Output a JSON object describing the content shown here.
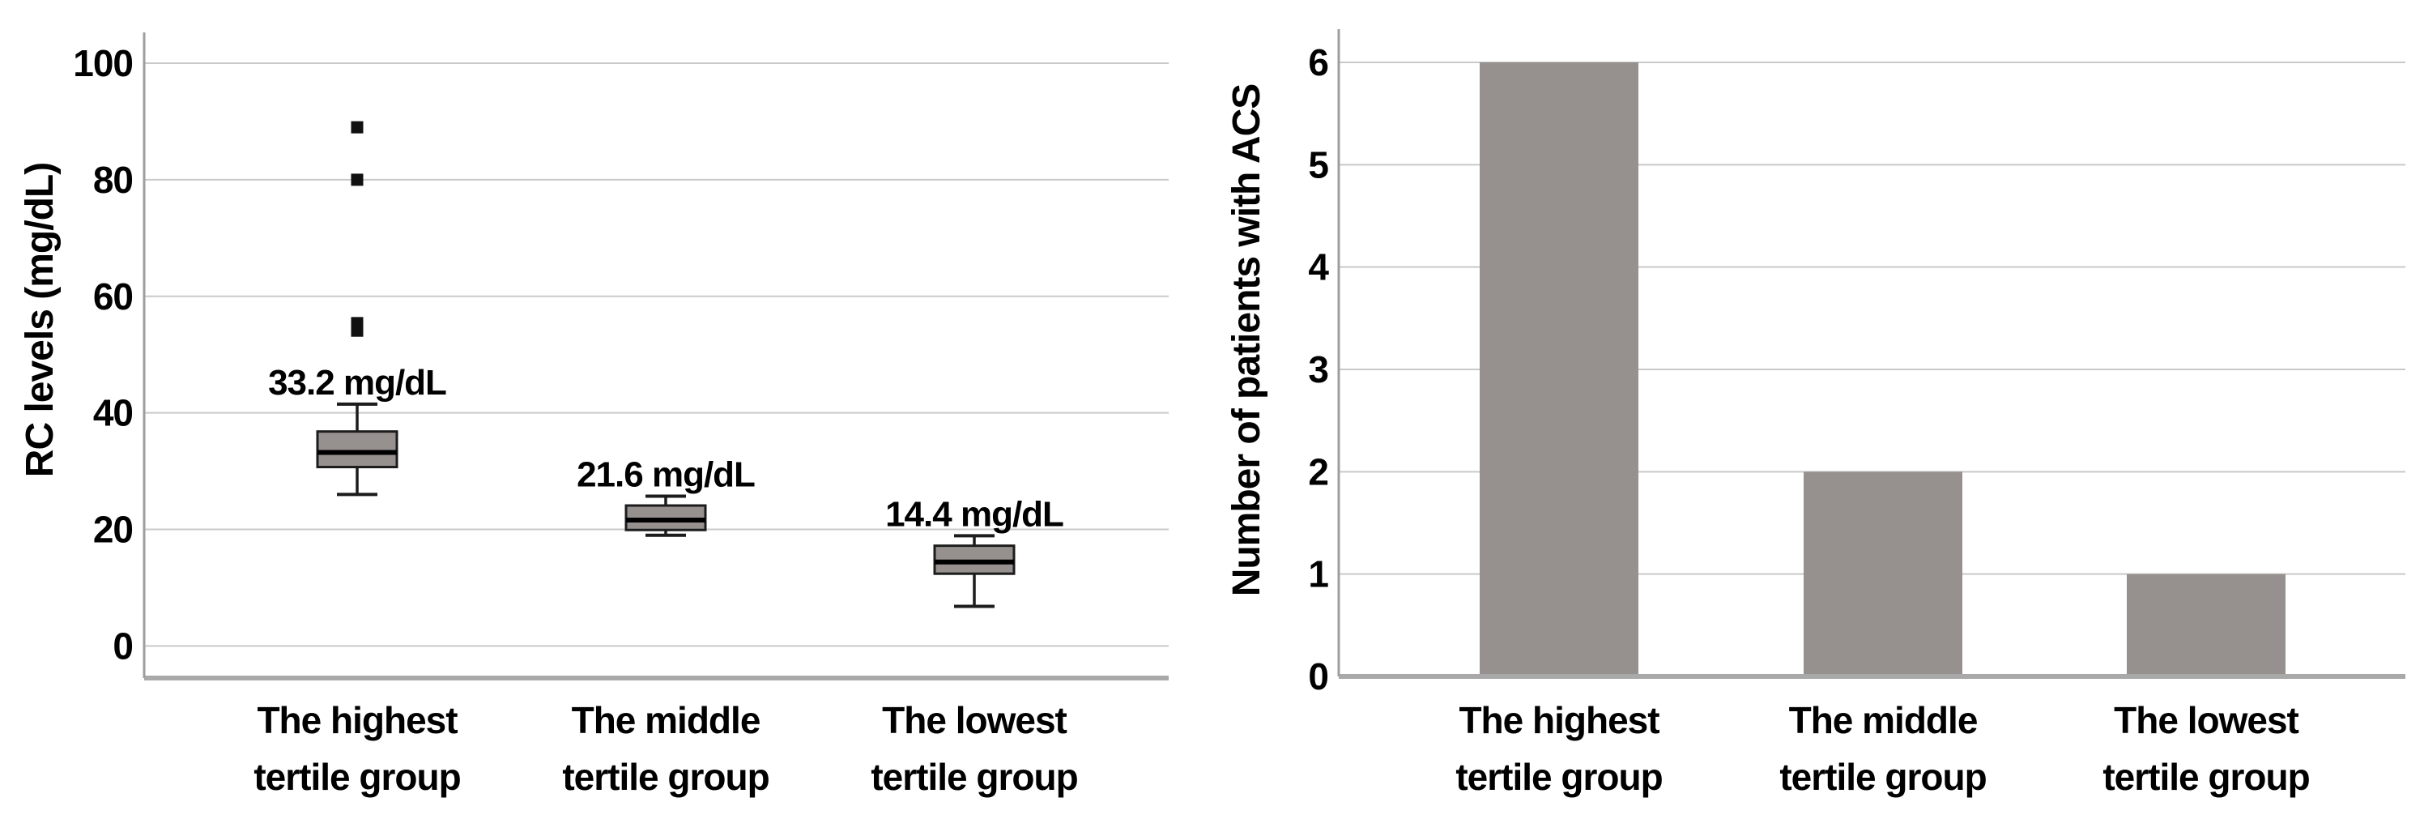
{
  "figure": {
    "background": "#ffffff",
    "left_axis_title": "RC levels (mg/dL)",
    "right_axis_title": "Number of patients with ACS"
  },
  "colors": {
    "box_fill": "#96918f",
    "bar_fill": "#96918f",
    "box_border": "#1c1c1c",
    "median_line": "#000000",
    "whisker": "#1c1c1c",
    "outlier": "#111111",
    "gridline": "#c9c9c9",
    "axis_line": "#9e9e9e",
    "baseline": "#a9a9a9",
    "text": "#000000"
  },
  "chart_data": [
    {
      "type": "boxplot",
      "title": "",
      "ylabel": "RC levels (mg/dL)",
      "xlabel": "",
      "ylim": [
        0,
        100
      ],
      "yticks": [
        0,
        20,
        40,
        60,
        80,
        100
      ],
      "grid": true,
      "legend": "none",
      "categories": [
        "The highest tertile group",
        "The middle tertile group",
        "The lowest tertile group"
      ],
      "category_lines": [
        [
          "The highest",
          "tertile group"
        ],
        [
          "The middle",
          "tertile group"
        ],
        [
          "The lowest",
          "tertile group"
        ]
      ],
      "boxes": [
        {
          "whisker_low": 26.0,
          "q1": 30.7,
          "median": 33.2,
          "q3": 36.8,
          "whisker_high": 41.5,
          "outliers": [
            54.1,
            55.4,
            80.0,
            89.0
          ],
          "annotation": "33.2 mg/dL"
        },
        {
          "whisker_low": 19.0,
          "q1": 19.9,
          "median": 21.6,
          "q3": 24.1,
          "whisker_high": 25.7,
          "outliers": [],
          "annotation": "21.6 mg/dL"
        },
        {
          "whisker_low": 6.8,
          "q1": 12.4,
          "median": 14.4,
          "q3": 17.2,
          "whisker_high": 18.9,
          "outliers": [],
          "annotation": "14.4 mg/dL"
        }
      ]
    },
    {
      "type": "bar",
      "title": "",
      "ylabel": "Number of patients with ACS",
      "xlabel": "",
      "ylim": [
        0,
        6
      ],
      "yticks": [
        0,
        1,
        2,
        3,
        4,
        5,
        6
      ],
      "grid": true,
      "legend": "none",
      "categories": [
        "The highest tertile group",
        "The middle tertile group",
        "The lowest tertile group"
      ],
      "category_lines": [
        [
          "The highest",
          "tertile group"
        ],
        [
          "The middle",
          "tertile group"
        ],
        [
          "The lowest",
          "tertile group"
        ]
      ],
      "values": [
        6,
        2,
        1
      ]
    }
  ]
}
